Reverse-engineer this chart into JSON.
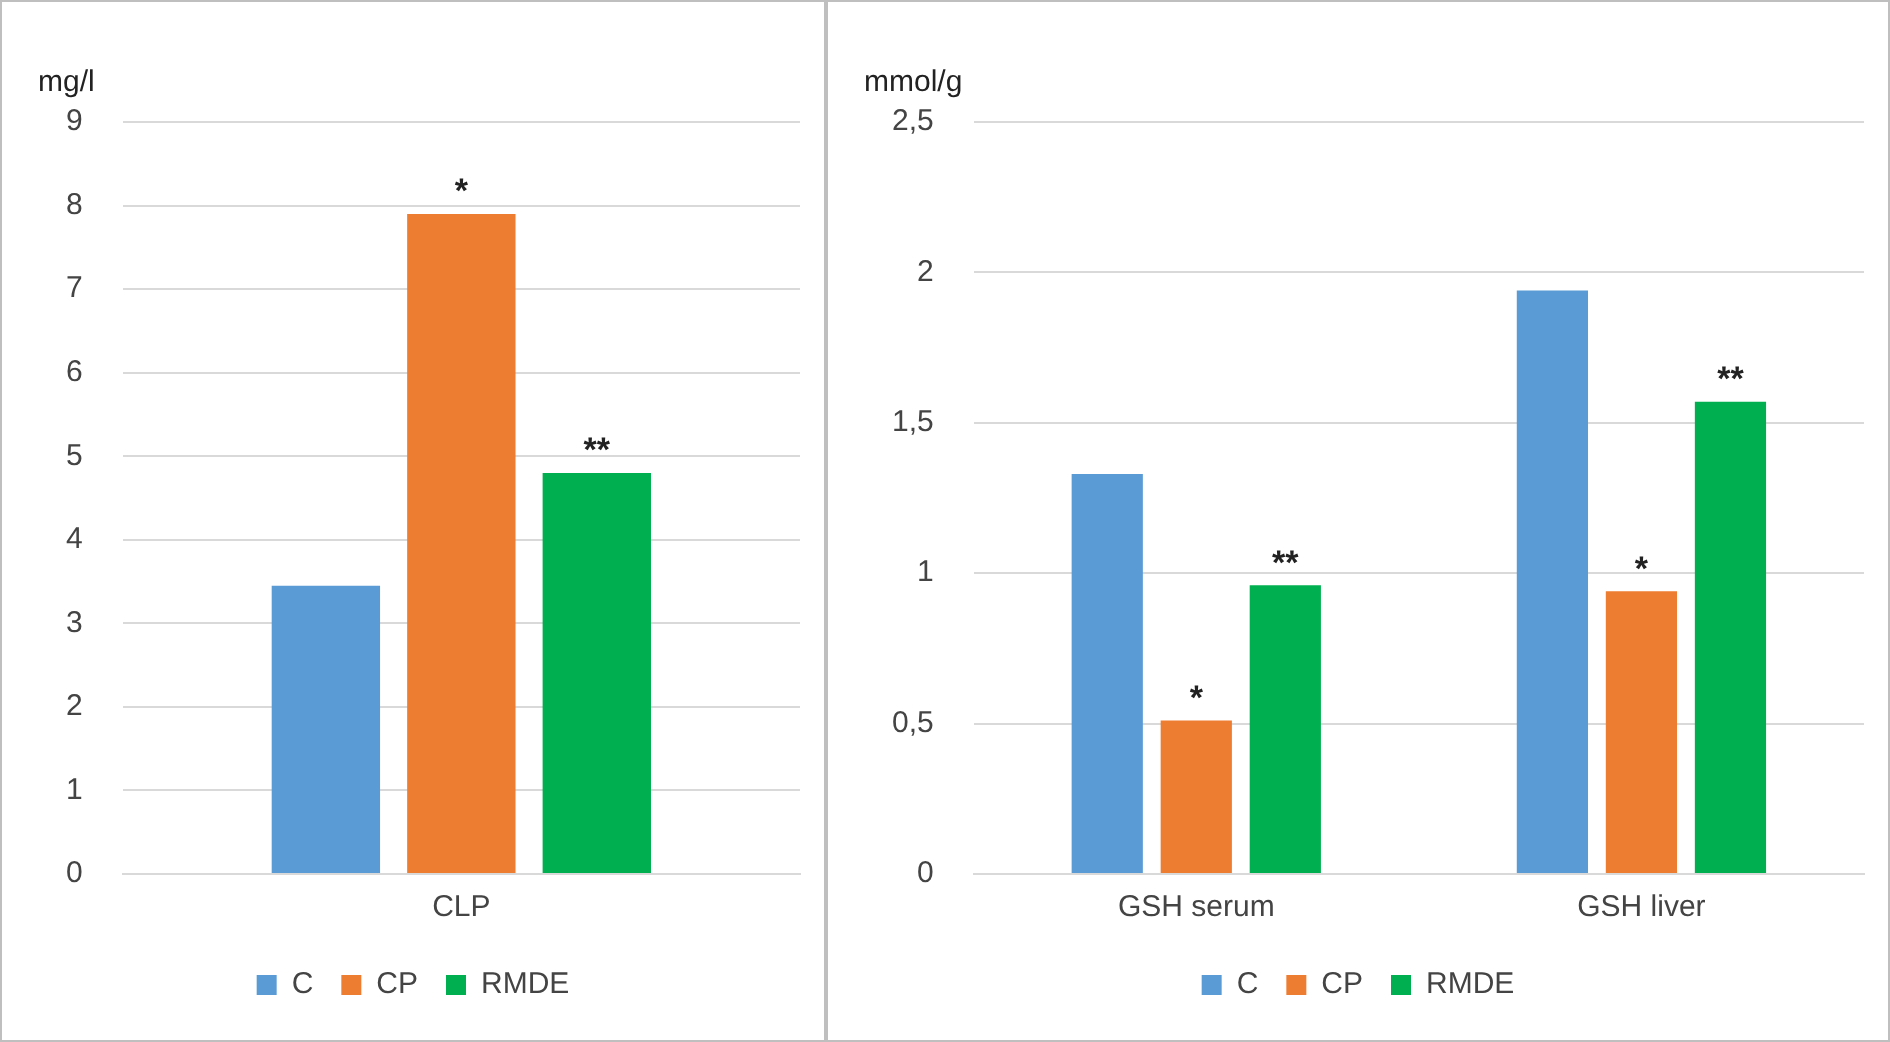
{
  "chart_data": [
    {
      "type": "bar",
      "ylabel": "mg/l",
      "categories": [
        "CLP"
      ],
      "series": [
        {
          "name": "C",
          "color": "#5b9bd5",
          "values": [
            3.45
          ]
        },
        {
          "name": "CP",
          "color": "#ed7d31",
          "values": [
            7.9
          ]
        },
        {
          "name": "RMDE",
          "color": "#00b050",
          "values": [
            4.8
          ]
        }
      ],
      "ylim": [
        0,
        9
      ],
      "yticks": [
        0,
        1,
        2,
        3,
        4,
        5,
        6,
        7,
        8,
        9
      ],
      "grid": "y",
      "legend": "bottom",
      "annotations": [
        {
          "text": "*",
          "x": "CLP",
          "y": 7.9
        },
        "**"
      ]
    },
    {
      "type": "bar",
      "ylabel": "mmol/g",
      "categories": [
        "GSH serum",
        "GSH liver"
      ],
      "series": [
        {
          "name": "C",
          "color": "#5b9bd5",
          "values": [
            1.33,
            1.94
          ]
        },
        {
          "name": "CP",
          "color": "#ed7d31",
          "values": [
            0.51,
            0.94
          ]
        },
        {
          "name": "RMDE",
          "color": "#00b050",
          "values": [
            0.96,
            1.57
          ]
        }
      ],
      "ylim": [
        0,
        2.5
      ],
      "yticks": [
        0,
        {
          "value": 0.5,
          "label": "0,5"
        },
        1,
        {
          "value": 1.5,
          "label": "1,5"
        },
        2,
        {
          "value": 2.5,
          "label": "2,5"
        }
      ],
      "grid": "y",
      "legend": "bottom",
      "annotations": [
        {
          "text": "*",
          "x": "GSH serum",
          "y": 0.51
        },
        "**",
        {
          "text": "*",
          "x": "GSH liver",
          "y": 0.94
        },
        "**"
      ]
    }
  ]
}
